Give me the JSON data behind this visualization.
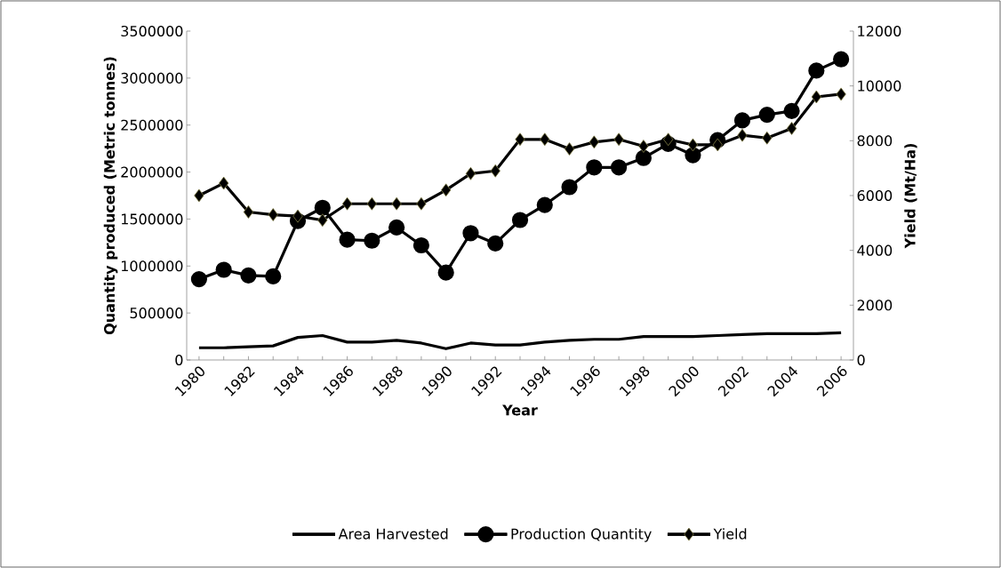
{
  "chart_data": {
    "type": "line",
    "xlabel": "Year",
    "ylabel": "Quantity produced (Metric tonnes)",
    "y2label": "Yield (Mt/Ha)",
    "categories": [
      "1980",
      null,
      "1982",
      null,
      "1984",
      null,
      "1986",
      null,
      "1988",
      null,
      "1990",
      null,
      "1992",
      null,
      "1994",
      null,
      "1996",
      null,
      "1998",
      null,
      "2000",
      null,
      "2002",
      null,
      "2004",
      null,
      "2006"
    ],
    "ylim": [
      0,
      3500000
    ],
    "yticks": [
      0,
      500000,
      1000000,
      1500000,
      2000000,
      2500000,
      3000000,
      3500000
    ],
    "y2lim": [
      0,
      12000
    ],
    "y2ticks": [
      0,
      2000,
      4000,
      6000,
      8000,
      10000,
      12000
    ],
    "legend": "bottom",
    "line_style": "solid",
    "series": [
      {
        "name": "Area Harvested",
        "color": "#000000",
        "marker": "none",
        "values": [
          130000,
          130000,
          140000,
          150000,
          240000,
          260000,
          190000,
          190000,
          210000,
          180000,
          120000,
          180000,
          160000,
          160000,
          190000,
          210000,
          220000,
          220000,
          250000,
          250000,
          250000,
          260000,
          270000,
          280000,
          280000,
          280000,
          290000
        ]
      },
      {
        "name": "Production Quantity",
        "color": "#000000",
        "marker": "circle",
        "values": [
          860000,
          960000,
          900000,
          890000,
          1480000,
          1620000,
          1280000,
          1270000,
          1410000,
          1220000,
          930000,
          1350000,
          1240000,
          1490000,
          1650000,
          1840000,
          2050000,
          2050000,
          2150000,
          2300000,
          2180000,
          2340000,
          2550000,
          2610000,
          2650000,
          3080000,
          3200000
        ]
      },
      {
        "name": "Yield",
        "color": "#000000",
        "marker": "diamond",
        "axis": "y2",
        "values": [
          6000,
          6450,
          5400,
          5300,
          5250,
          5100,
          5700,
          5700,
          5700,
          5700,
          6200,
          6800,
          6900,
          8050,
          8050,
          7700,
          7950,
          8050,
          7800,
          8050,
          7850,
          7850,
          8200,
          8100,
          8450,
          9600,
          9700
        ]
      }
    ]
  }
}
